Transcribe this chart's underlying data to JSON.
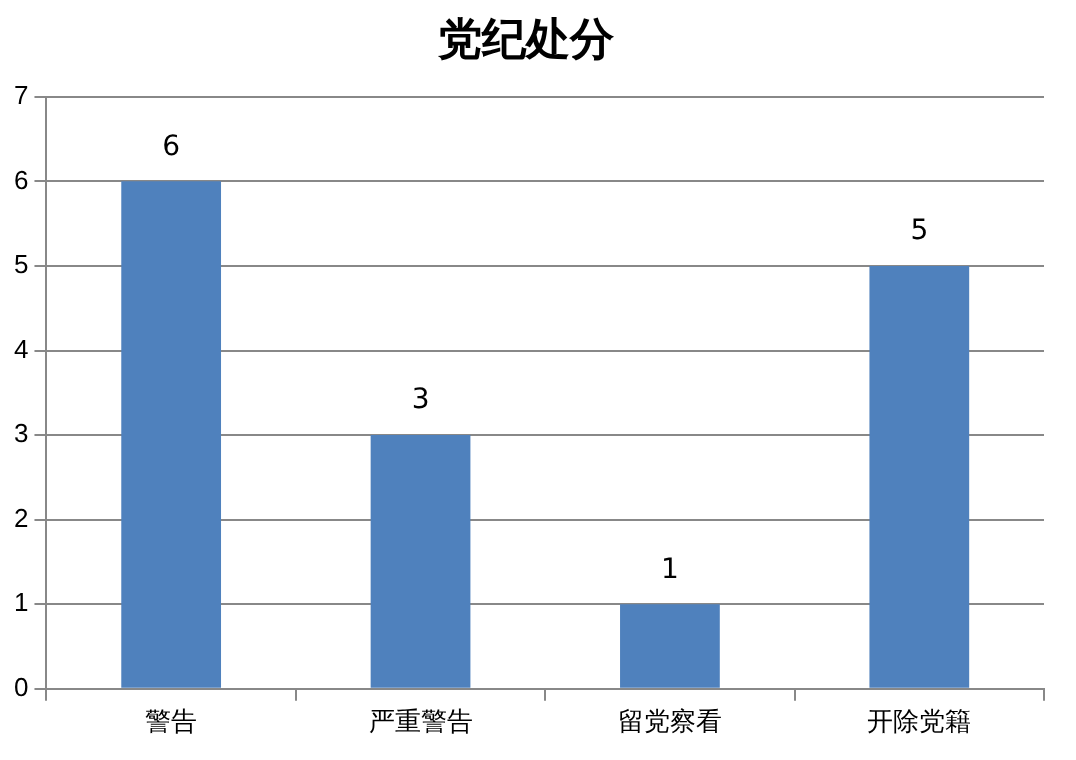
{
  "chart_data": {
    "type": "bar",
    "title": "党纪处分",
    "categories": [
      "警告",
      "严重警告",
      "留党察看",
      "开除党籍"
    ],
    "values": [
      6,
      3,
      1,
      5
    ],
    "color": "#4f81bd",
    "ylim": [
      0,
      7
    ],
    "yticks": [
      0,
      1,
      2,
      3,
      4,
      5,
      6,
      7
    ],
    "grid": "y",
    "data_labels": true
  }
}
